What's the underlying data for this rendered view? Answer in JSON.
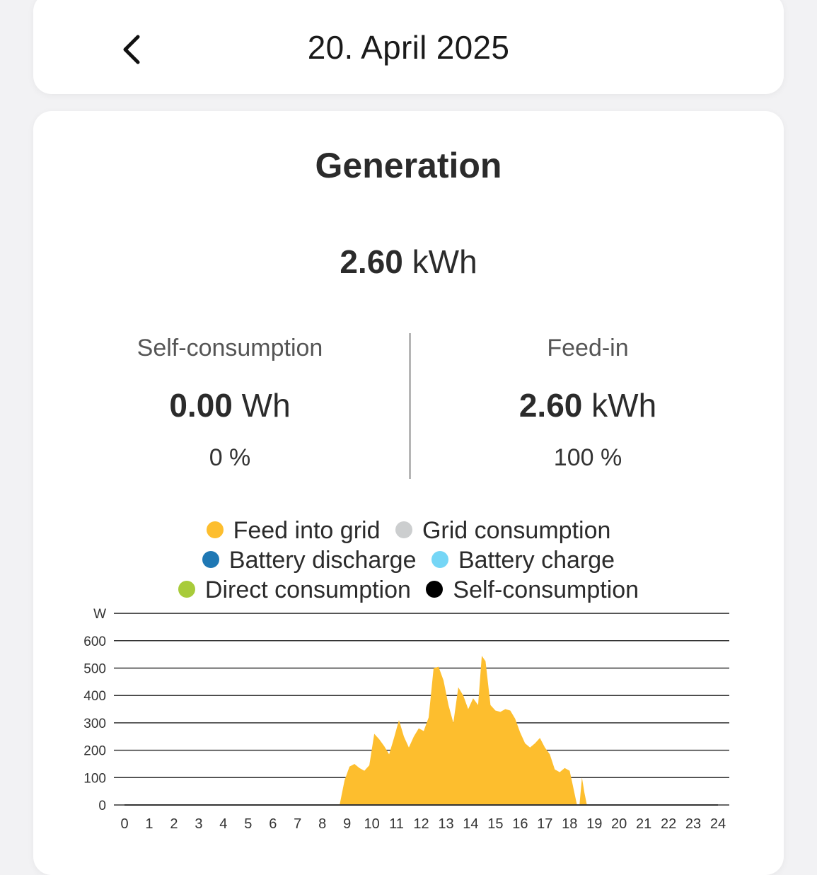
{
  "header": {
    "date": "20. April 2025"
  },
  "summary": {
    "title": "Generation",
    "total_value": "2.60",
    "total_unit": "kWh",
    "self_consumption": {
      "label": "Self-consumption",
      "value": "0.00",
      "unit": "Wh",
      "percent": "0 %"
    },
    "feed_in": {
      "label": "Feed-in",
      "value": "2.60",
      "unit": "kWh",
      "percent": "100 %"
    }
  },
  "legend": {
    "items": [
      {
        "label": "Feed into grid",
        "color": "#FDBE2E"
      },
      {
        "label": "Grid consumption",
        "color": "#CCCECF"
      },
      {
        "label": "Battery discharge",
        "color": "#1F78B4"
      },
      {
        "label": "Battery charge",
        "color": "#75D6F6"
      },
      {
        "label": "Direct consumption",
        "color": "#A8CB3A"
      },
      {
        "label": "Self-consumption",
        "color": "#000000"
      }
    ]
  },
  "chart_data": {
    "type": "area",
    "ylabel": "W",
    "ylim": [
      0,
      700
    ],
    "yticks": [
      0,
      100,
      200,
      300,
      400,
      500,
      600
    ],
    "xlim": [
      0,
      24
    ],
    "xticks": [
      "0",
      "1",
      "2",
      "3",
      "4",
      "5",
      "6",
      "7",
      "8",
      "9",
      "10",
      "11",
      "12",
      "13",
      "14",
      "15",
      "16",
      "17",
      "18",
      "19",
      "20",
      "21",
      "22",
      "23",
      "24"
    ],
    "grid": true,
    "series": [
      {
        "name": "Feed into grid",
        "color": "#FDBE2E",
        "x": [
          0,
          8.7,
          8.9,
          9.1,
          9.3,
          9.5,
          9.7,
          9.9,
          10.1,
          10.3,
          10.5,
          10.7,
          10.9,
          11.1,
          11.3,
          11.5,
          11.7,
          11.9,
          12.1,
          12.3,
          12.5,
          12.7,
          12.9,
          13.1,
          13.3,
          13.5,
          13.7,
          13.9,
          14.1,
          14.3,
          14.45,
          14.6,
          14.8,
          15.0,
          15.2,
          15.4,
          15.6,
          15.8,
          16.0,
          16.2,
          16.4,
          16.6,
          16.8,
          17.0,
          17.2,
          17.4,
          17.6,
          17.8,
          18.0,
          18.1,
          18.3,
          18.4,
          18.5,
          18.6,
          18.7,
          24
        ],
        "y": [
          0,
          0,
          90,
          140,
          150,
          135,
          125,
          145,
          260,
          240,
          215,
          185,
          245,
          310,
          250,
          210,
          250,
          280,
          270,
          320,
          500,
          505,
          455,
          365,
          300,
          430,
          400,
          350,
          390,
          365,
          545,
          525,
          365,
          345,
          340,
          350,
          345,
          315,
          265,
          225,
          210,
          225,
          245,
          210,
          185,
          130,
          120,
          135,
          125,
          85,
          0,
          0,
          100,
          45,
          0,
          0
        ]
      }
    ]
  }
}
